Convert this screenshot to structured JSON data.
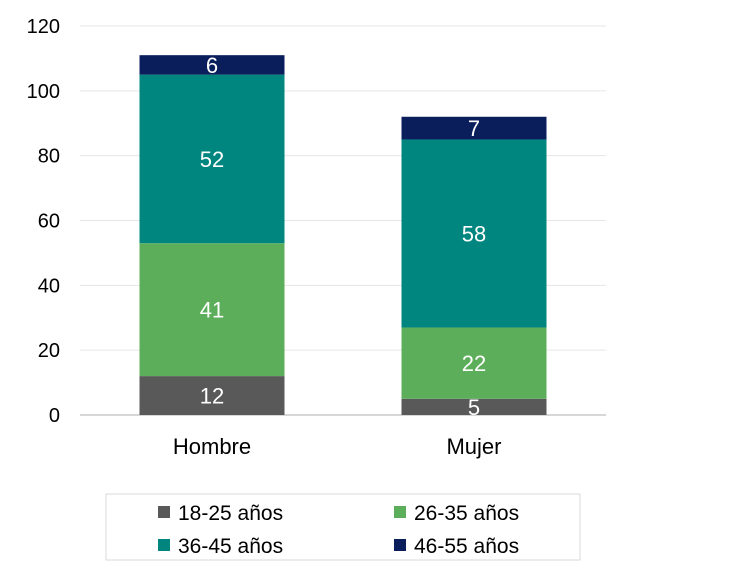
{
  "chart_data": {
    "type": "bar",
    "stacked": true,
    "categories": [
      "Hombre",
      "Mujer"
    ],
    "series": [
      {
        "name": "18-25 años",
        "values": [
          12,
          5
        ],
        "color": "#595959"
      },
      {
        "name": "26-35 años",
        "values": [
          41,
          22
        ],
        "color": "#5DAE5B"
      },
      {
        "name": "36-45 años",
        "values": [
          52,
          58
        ],
        "color": "#00857F"
      },
      {
        "name": "46-55 años",
        "values": [
          6,
          7
        ],
        "color": "#0B1E5C"
      }
    ],
    "title": "",
    "xlabel": "",
    "ylabel": "",
    "ylim": [
      0,
      120
    ],
    "yticks": [
      "0",
      "20",
      "40",
      "60",
      "80",
      "100",
      "120"
    ],
    "grid": true,
    "legend_position": "bottom",
    "data_labels": true
  }
}
